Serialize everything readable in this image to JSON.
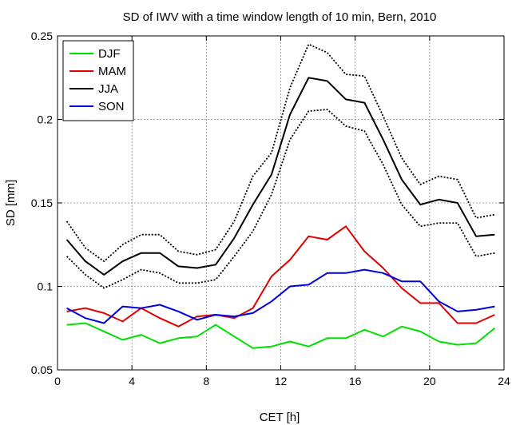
{
  "chart_data": {
    "type": "line",
    "title": "SD of IWV with a time window length of 10 min, Bern, 2010",
    "xlabel": "CET [h]",
    "ylabel": "SD [mm]",
    "xlim": [
      0,
      24
    ],
    "ylim": [
      0.05,
      0.25
    ],
    "xticks": [
      0,
      4,
      8,
      12,
      16,
      20,
      24
    ],
    "yticks": [
      0.05,
      0.1,
      0.15,
      0.2,
      0.25
    ],
    "ytick_labels": [
      "0.05",
      "0.1",
      "0.15",
      "0.2",
      "0.25"
    ],
    "grid": true,
    "legend_position": "top-left",
    "x": [
      0.5,
      1.5,
      2.5,
      3.5,
      4.5,
      5.5,
      6.5,
      7.5,
      8.5,
      9.5,
      10.5,
      11.5,
      12.5,
      13.5,
      14.5,
      15.5,
      16.5,
      17.5,
      18.5,
      19.5,
      20.5,
      21.5,
      22.5,
      23.5
    ],
    "series": [
      {
        "name": "DJF",
        "color": "#00e000",
        "style": "solid",
        "values": [
          0.077,
          0.078,
          0.073,
          0.068,
          0.071,
          0.066,
          0.069,
          0.07,
          0.077,
          0.07,
          0.063,
          0.064,
          0.067,
          0.064,
          0.069,
          0.069,
          0.074,
          0.07,
          0.076,
          0.073,
          0.067,
          0.065,
          0.066,
          0.075
        ]
      },
      {
        "name": "MAM",
        "color": "#e00000",
        "style": "solid",
        "values": [
          0.085,
          0.087,
          0.084,
          0.079,
          0.087,
          0.081,
          0.076,
          0.082,
          0.083,
          0.081,
          0.087,
          0.106,
          0.116,
          0.13,
          0.128,
          0.136,
          0.121,
          0.111,
          0.099,
          0.09,
          0.09,
          0.078,
          0.078,
          0.083
        ]
      },
      {
        "name": "JJA",
        "color": "#000000",
        "style": "solid",
        "values": [
          0.128,
          0.115,
          0.107,
          0.115,
          0.12,
          0.12,
          0.112,
          0.111,
          0.113,
          0.129,
          0.149,
          0.167,
          0.203,
          0.225,
          0.223,
          0.212,
          0.21,
          0.188,
          0.164,
          0.149,
          0.152,
          0.15,
          0.13,
          0.131
        ]
      },
      {
        "name": "SON",
        "color": "#0000e0",
        "style": "solid",
        "values": [
          0.087,
          0.081,
          0.078,
          0.088,
          0.087,
          0.089,
          0.085,
          0.08,
          0.083,
          0.082,
          0.084,
          0.091,
          0.1,
          0.101,
          0.108,
          0.108,
          0.11,
          0.108,
          0.103,
          0.103,
          0.091,
          0.085,
          0.086,
          0.088
        ]
      },
      {
        "name": "",
        "color": "#000000",
        "style": "dotted",
        "values": [
          0.139,
          0.123,
          0.115,
          0.125,
          0.131,
          0.131,
          0.121,
          0.119,
          0.122,
          0.139,
          0.166,
          0.18,
          0.219,
          0.245,
          0.24,
          0.227,
          0.226,
          0.202,
          0.177,
          0.161,
          0.166,
          0.164,
          0.141,
          0.143
        ]
      },
      {
        "name": "",
        "color": "#000000",
        "style": "dotted",
        "values": [
          0.118,
          0.107,
          0.099,
          0.104,
          0.11,
          0.108,
          0.102,
          0.102,
          0.104,
          0.118,
          0.133,
          0.155,
          0.188,
          0.205,
          0.206,
          0.196,
          0.193,
          0.173,
          0.149,
          0.136,
          0.138,
          0.138,
          0.118,
          0.12
        ]
      }
    ]
  }
}
